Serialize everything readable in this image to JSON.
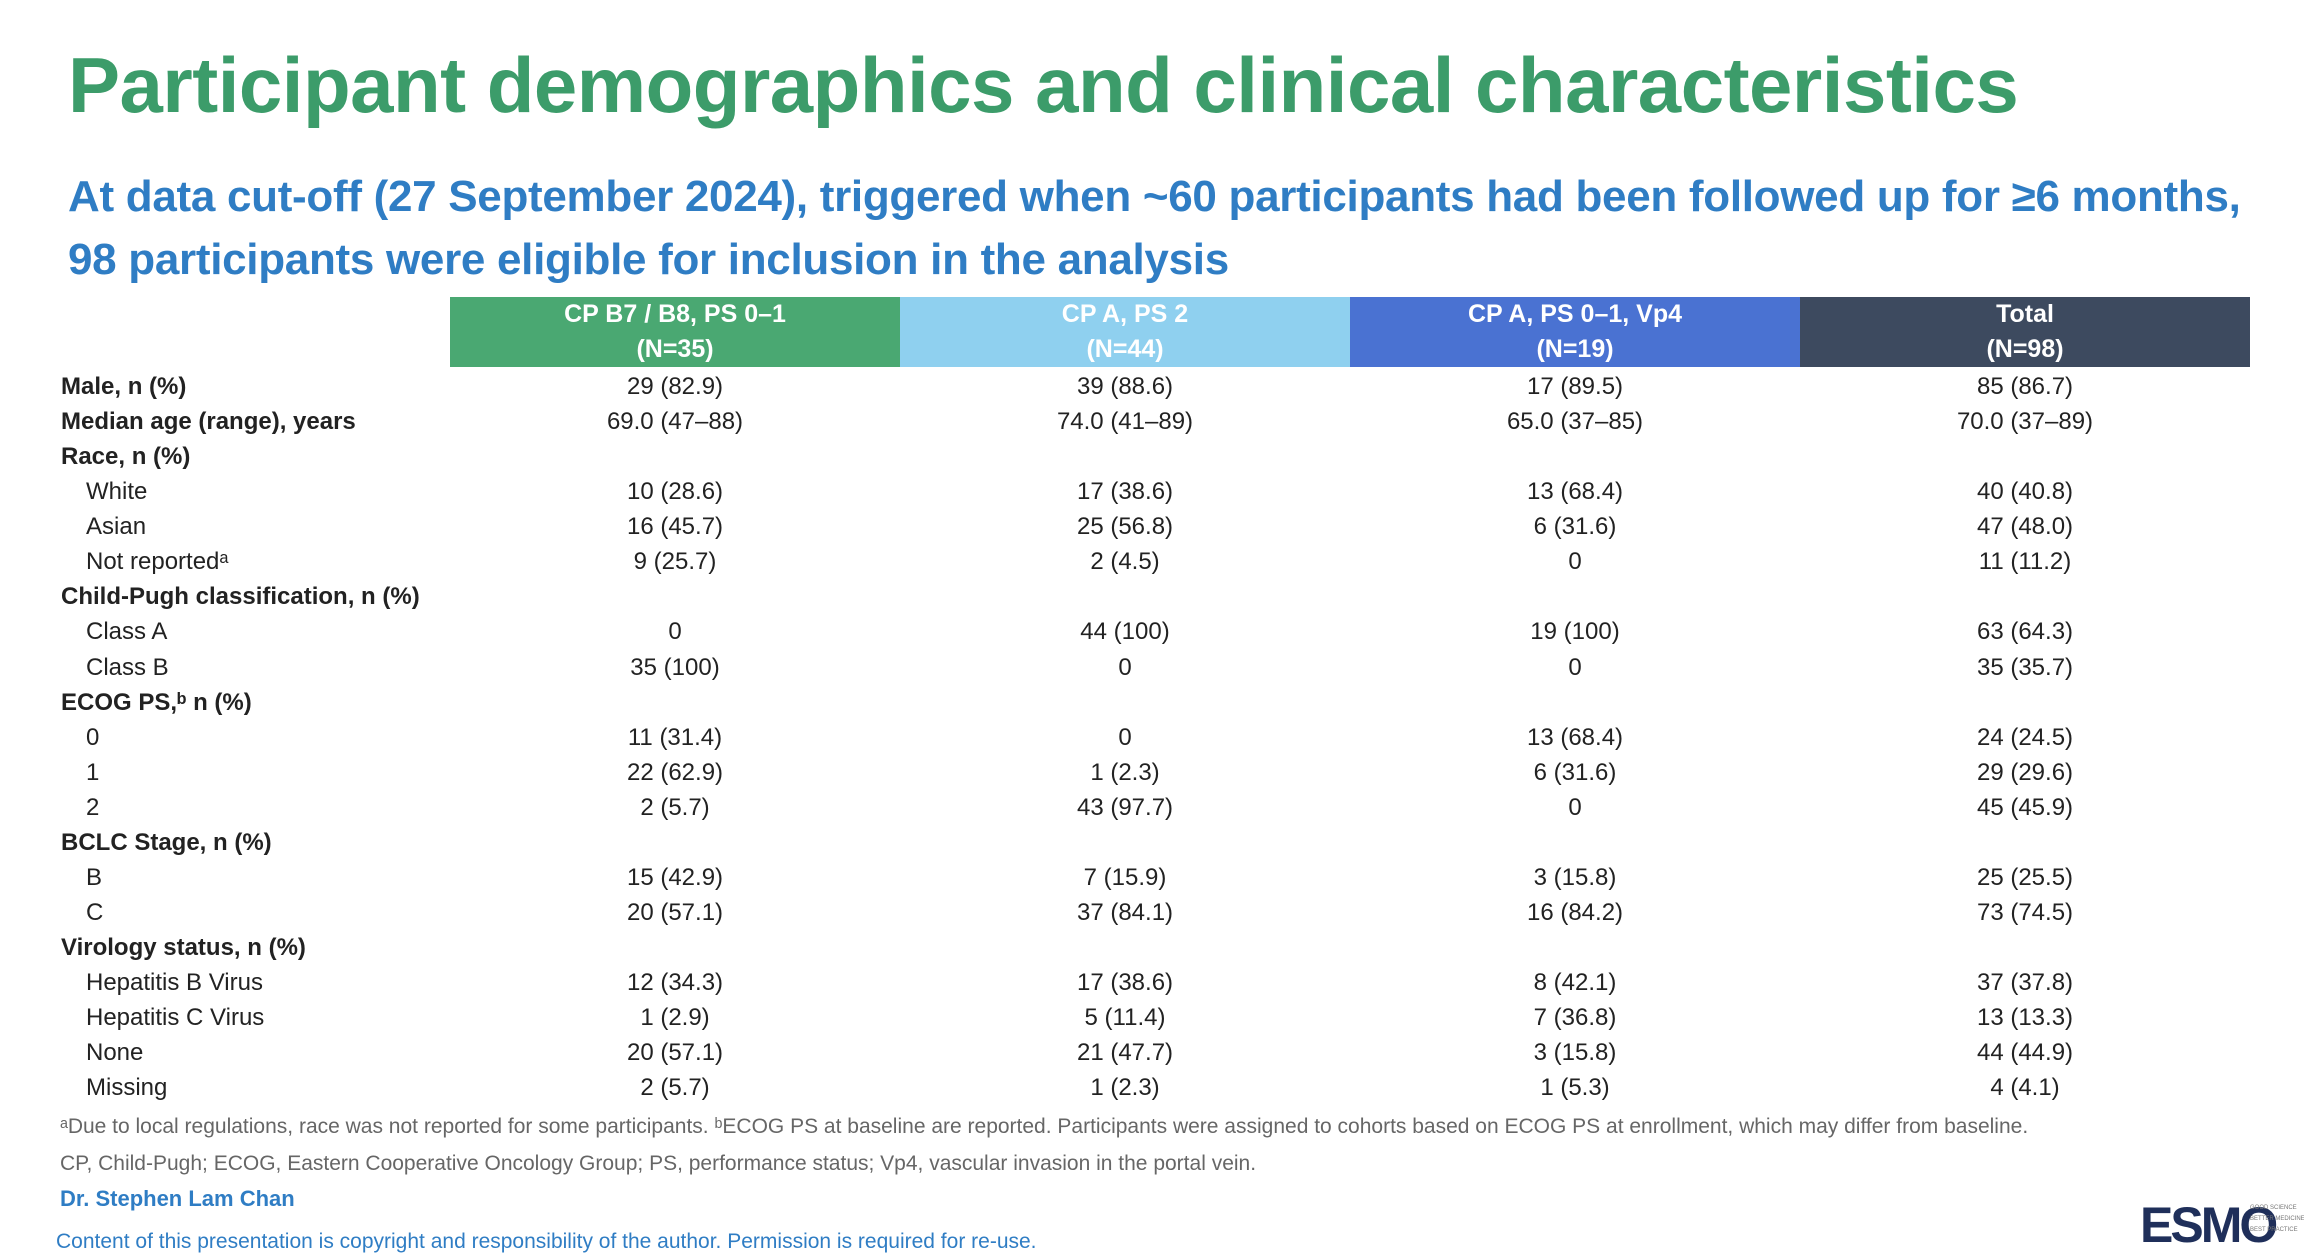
{
  "header": {
    "title": "Participant demographics and clinical characteristics",
    "subtitle": [
      "At data cut-off (27 September 2024), triggered when ~60 participants had been followed up for ≥6 months,",
      "98 participants were eligible for inclusion in the analysis"
    ]
  },
  "table": {
    "columns": [
      [
        "CP B7 / B8, PS 0–1",
        "(N=35)"
      ],
      [
        "CP A, PS 2",
        "(N=44)"
      ],
      [
        "CP A, PS 0–1, Vp4",
        "(N=19)"
      ],
      [
        "Total",
        "(N=98)"
      ]
    ],
    "sections": [
      {
        "label": "Male, n (%)",
        "values": [
          "29 (82.9)",
          "39 (88.6)",
          "17 (89.5)",
          "85 (86.7)"
        ]
      },
      {
        "label": "Median age (range), years",
        "values": [
          "69.0 (47–88)",
          "74.0 (41–89)",
          "65.0 (37–85)",
          "70.0 (37–89)"
        ]
      },
      {
        "label": "Race, n (%)",
        "items": [
          {
            "label": "White",
            "values": [
              "10 (28.6)",
              "17 (38.6)",
              "13 (68.4)",
              "40 (40.8)"
            ]
          },
          {
            "label": "Asian",
            "values": [
              "16 (45.7)",
              "25 (56.8)",
              "6 (31.6)",
              "47 (48.0)"
            ]
          },
          {
            "label": "Not reportedᵃ",
            "values": [
              "9 (25.7)",
              "2 (4.5)",
              "0",
              "11 (11.2)"
            ]
          }
        ]
      },
      {
        "label": "Child-Pugh classification, n (%)",
        "items": [
          {
            "label": "Class A",
            "values": [
              "0",
              "44 (100)",
              "19 (100)",
              "63 (64.3)"
            ]
          },
          {
            "label": "Class B",
            "values": [
              "35 (100)",
              "0",
              "0",
              "35 (35.7)"
            ]
          }
        ]
      },
      {
        "label": "ECOG PS,ᵇ n (%)",
        "items": [
          {
            "label": "0",
            "values": [
              "11 (31.4)",
              "0",
              "13 (68.4)",
              "24 (24.5)"
            ]
          },
          {
            "label": "1",
            "values": [
              "22 (62.9)",
              "1 (2.3)",
              "6 (31.6)",
              "29 (29.6)"
            ]
          },
          {
            "label": "2",
            "values": [
              "2 (5.7)",
              "43 (97.7)",
              "0",
              "45 (45.9)"
            ]
          }
        ]
      },
      {
        "label": "BCLC Stage, n (%)",
        "items": [
          {
            "label": "B",
            "values": [
              "15 (42.9)",
              "7 (15.9)",
              "3 (15.8)",
              "25 (25.5)"
            ]
          },
          {
            "label": "C",
            "values": [
              "20 (57.1)",
              "37 (84.1)",
              "16 (84.2)",
              "73 (74.5)"
            ]
          }
        ]
      },
      {
        "label": "Virology status, n (%)",
        "items": [
          {
            "label": "Hepatitis B Virus",
            "values": [
              "12 (34.3)",
              "17 (38.6)",
              "8 (42.1)",
              "37 (37.8)"
            ]
          },
          {
            "label": "Hepatitis C Virus",
            "values": [
              "1 (2.9)",
              "5 (11.4)",
              "7 (36.8)",
              "13 (13.3)"
            ]
          },
          {
            "label": "None",
            "values": [
              "20 (57.1)",
              "21 (47.7)",
              "3 (15.8)",
              "44 (44.9)"
            ]
          },
          {
            "label": "Missing",
            "values": [
              "2 (5.7)",
              "1 (2.3)",
              "1 (5.3)",
              "4 (4.1)"
            ]
          }
        ]
      }
    ]
  },
  "footnotes": [
    "ᵃDue to local regulations, race was not reported for some participants. ᵇECOG PS at baseline are reported. Participants were assigned to cohorts based on ECOG PS at enrollment, which may differ from baseline.",
    "CP, Child-Pugh; ECOG, Eastern Cooperative Oncology Group; PS, performance status; Vp4, vascular invasion in the portal vein."
  ],
  "author": "Dr. Stephen Lam Chan",
  "copyright": "Content of this presentation is copyright and responsibility of the author. Permission is required for re-use.",
  "logo": {
    "name": "ESMO",
    "tagline": [
      "GOOD SCIENCE",
      "BETTER MEDICINE",
      "BEST PRACTICE"
    ]
  }
}
